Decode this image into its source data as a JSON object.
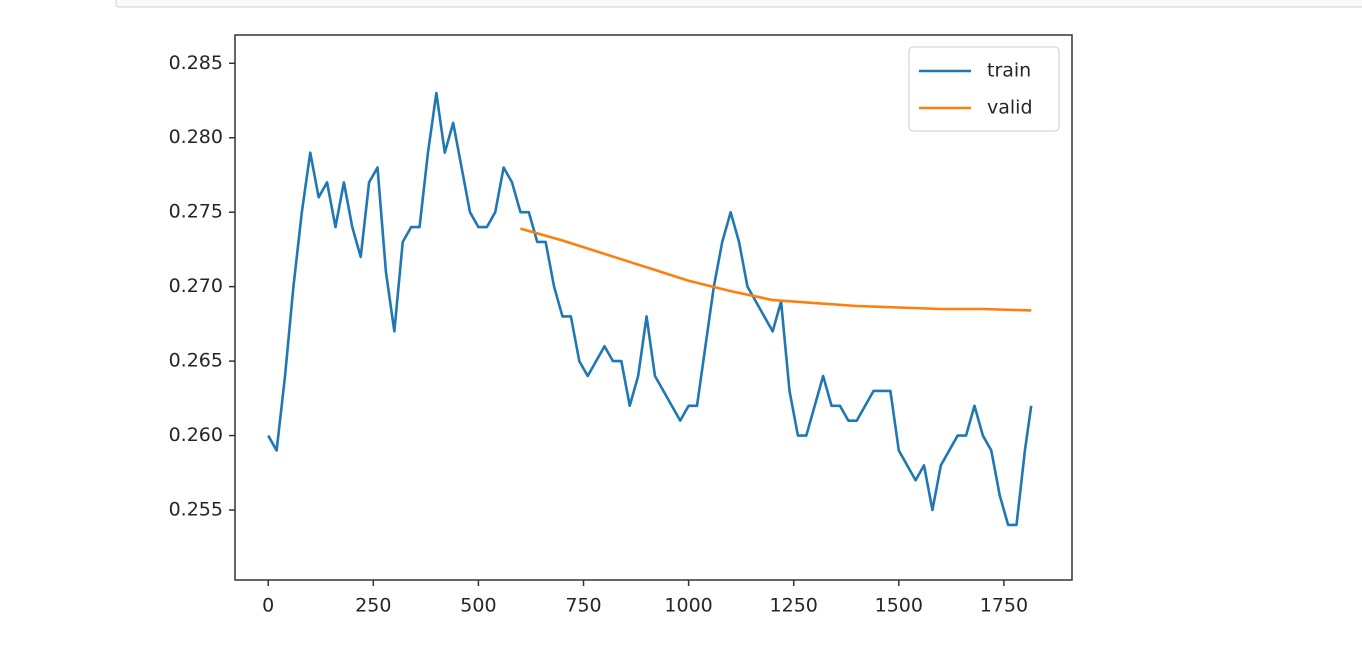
{
  "chart_data": {
    "type": "line",
    "xlim": [
      -79,
      1912
    ],
    "ylim": [
      0.2503,
      0.2869
    ],
    "xticks": [
      0,
      250,
      500,
      750,
      1000,
      1250,
      1500,
      1750
    ],
    "yticks": [
      0.255,
      {
        "value": 0.26,
        "label": "0.260"
      },
      0.265,
      {
        "value": 0.27,
        "label": "0.270"
      },
      0.275,
      {
        "value": 0.28,
        "label": "0.280"
      },
      0.285
    ],
    "legend": "upper right",
    "series": [
      {
        "name": "train",
        "color": "#1f77b4",
        "x": [
          0,
          20,
          40,
          60,
          80,
          100,
          120,
          140,
          160,
          180,
          200,
          220,
          240,
          260,
          280,
          300,
          320,
          340,
          360,
          380,
          400,
          420,
          440,
          460,
          480,
          500,
          520,
          540,
          560,
          580,
          600,
          620,
          640,
          660,
          680,
          700,
          720,
          740,
          760,
          780,
          800,
          820,
          840,
          860,
          880,
          900,
          920,
          940,
          960,
          980,
          1000,
          1020,
          1040,
          1060,
          1080,
          1100,
          1120,
          1140,
          1160,
          1180,
          1200,
          1220,
          1240,
          1260,
          1280,
          1300,
          1320,
          1340,
          1360,
          1380,
          1400,
          1420,
          1440,
          1460,
          1480,
          1500,
          1520,
          1540,
          1560,
          1580,
          1600,
          1620,
          1640,
          1660,
          1680,
          1700,
          1720,
          1740,
          1760,
          1780,
          1800,
          1815
        ],
        "values": [
          0.26,
          0.259,
          0.264,
          0.27,
          0.275,
          0.279,
          0.276,
          0.277,
          0.274,
          0.277,
          0.274,
          0.272,
          0.277,
          0.278,
          0.271,
          0.267,
          0.273,
          0.274,
          0.274,
          0.279,
          0.283,
          0.279,
          0.281,
          0.278,
          0.275,
          0.274,
          0.274,
          0.275,
          0.278,
          0.277,
          0.275,
          0.275,
          0.273,
          0.273,
          0.27,
          0.268,
          0.268,
          0.265,
          0.264,
          0.265,
          0.266,
          0.265,
          0.265,
          0.262,
          0.264,
          0.268,
          0.264,
          0.263,
          0.262,
          0.261,
          0.262,
          0.262,
          0.266,
          0.27,
          0.273,
          0.275,
          0.273,
          0.27,
          0.269,
          0.268,
          0.267,
          0.269,
          0.263,
          0.26,
          0.26,
          0.262,
          0.264,
          0.262,
          0.262,
          0.261,
          0.261,
          0.262,
          0.263,
          0.263,
          0.263,
          0.259,
          0.258,
          0.257,
          0.258,
          0.255,
          0.258,
          0.259,
          0.26,
          0.26,
          0.262,
          0.26,
          0.259,
          0.256,
          0.254,
          0.254,
          0.259,
          0.262
        ]
      },
      {
        "name": "valid",
        "color": "#ff7f0e",
        "x": [
          600,
          700,
          800,
          900,
          1000,
          1100,
          1200,
          1300,
          1400,
          1500,
          1600,
          1700,
          1815
        ],
        "values": [
          0.2739,
          0.2731,
          0.2722,
          0.2713,
          0.2704,
          0.2697,
          0.2691,
          0.2689,
          0.2687,
          0.2686,
          0.2685,
          0.2685,
          0.2684
        ]
      }
    ]
  }
}
